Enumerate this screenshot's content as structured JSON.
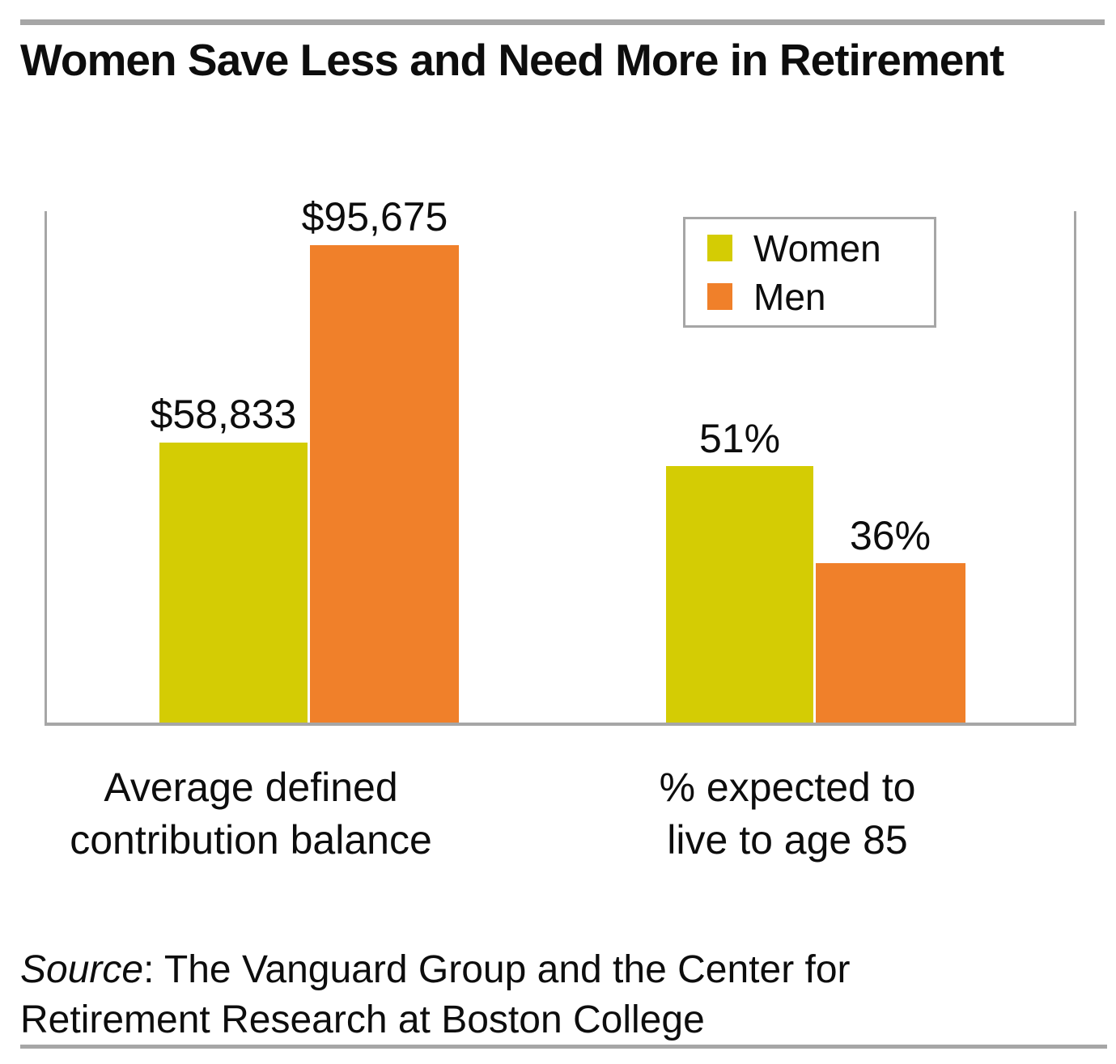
{
  "title": "Women Save Less and Need More in Retirement",
  "legend": {
    "items": [
      {
        "label": "Women",
        "color": "#d4cc04"
      },
      {
        "label": "Men",
        "color": "#f0802a"
      }
    ]
  },
  "category_labels": [
    {
      "line1": "Average defined",
      "line2": "contribution balance"
    },
    {
      "line1": "% expected to",
      "line2": "live to age 85"
    }
  ],
  "source": {
    "line1_italic": "Source",
    "line1_rest": ": The Vanguard Group and the Center for",
    "line2": "Retirement Research at Boston College"
  },
  "colors": {
    "women": "#d4cc04",
    "men": "#f0802a",
    "rule_gray": "#a6a6a6",
    "text": "#0d0d0d"
  },
  "chart_data": {
    "type": "bar",
    "title": "Women Save Less and Need More in Retirement",
    "categories": [
      "Average defined contribution balance",
      "% expected to live to age 85"
    ],
    "series": [
      {
        "name": "Women",
        "color": "#d4cc04",
        "values": [
          58833,
          51
        ],
        "value_labels": [
          "$58,833",
          "51%"
        ]
      },
      {
        "name": "Men",
        "color": "#f0802a",
        "values": [
          95675,
          36
        ],
        "value_labels": [
          "$95,675",
          "36%"
        ]
      }
    ],
    "units": [
      "USD",
      "percent"
    ],
    "grid": false,
    "axis_ticks_visible": false,
    "legend_position": "top-right",
    "source": "Source: The Vanguard Group and the Center for Retirement Research at Boston College"
  }
}
